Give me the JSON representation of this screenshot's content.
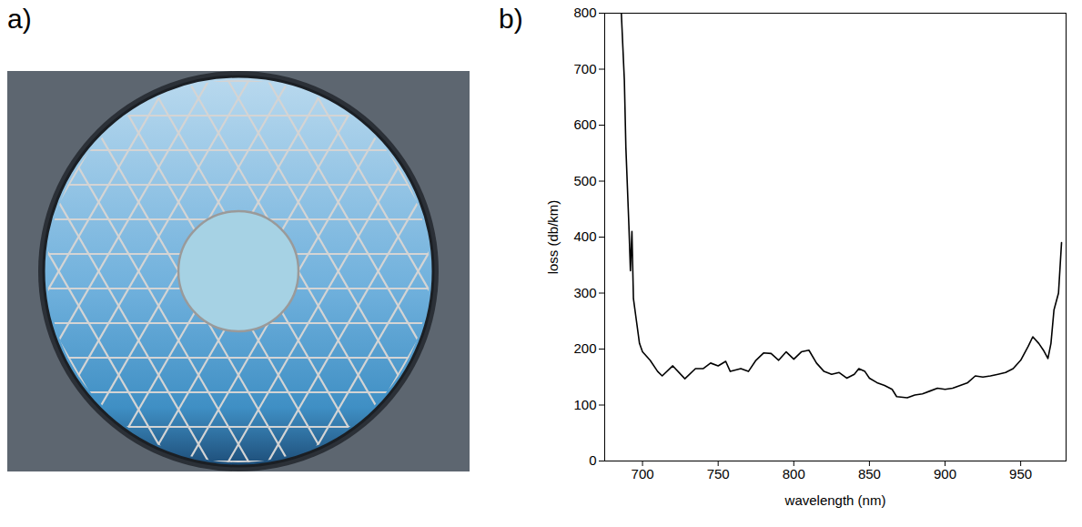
{
  "panel_a": {
    "label": "a)"
  },
  "chart_data": {
    "panel_label": "b)",
    "type": "line",
    "x_label": "wavelength (nm)",
    "y_label": "loss (db/km)",
    "color": "#000000",
    "xlim": [
      675,
      980
    ],
    "ylim": [
      0,
      800
    ],
    "xticks": [
      700,
      750,
      800,
      850,
      900,
      950
    ],
    "yticks": [
      0,
      100,
      200,
      300,
      400,
      500,
      600,
      700,
      800
    ],
    "x": [
      686,
      688,
      689,
      691,
      692,
      693,
      694,
      696,
      698,
      700,
      705,
      710,
      713,
      720,
      728,
      735,
      740,
      745,
      750,
      755,
      758,
      765,
      770,
      775,
      780,
      785,
      790,
      795,
      800,
      805,
      810,
      815,
      820,
      825,
      830,
      835,
      840,
      843,
      847,
      850,
      855,
      860,
      865,
      868,
      875,
      880,
      885,
      890,
      895,
      900,
      905,
      910,
      915,
      920,
      925,
      930,
      935,
      940,
      945,
      950,
      955,
      958,
      962,
      965,
      968,
      970,
      972,
      975,
      977
    ],
    "values": [
      800,
      680,
      560,
      420,
      340,
      410,
      290,
      250,
      210,
      195,
      180,
      160,
      152,
      170,
      147,
      165,
      165,
      175,
      170,
      178,
      160,
      165,
      160,
      180,
      193,
      192,
      180,
      195,
      182,
      195,
      198,
      175,
      160,
      155,
      158,
      148,
      155,
      165,
      160,
      148,
      140,
      135,
      128,
      115,
      113,
      118,
      120,
      125,
      130,
      128,
      130,
      135,
      140,
      152,
      150,
      152,
      155,
      158,
      165,
      180,
      205,
      222,
      210,
      198,
      183,
      210,
      270,
      300,
      390
    ]
  }
}
